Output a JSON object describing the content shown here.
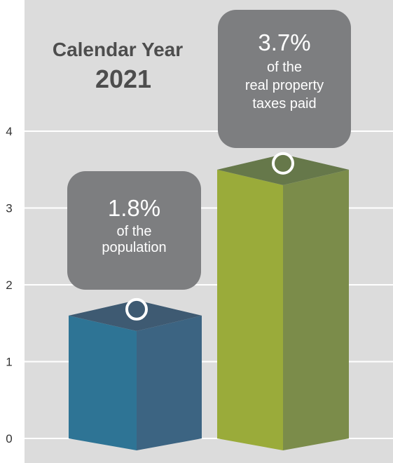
{
  "chart_data": {
    "type": "bar",
    "title_line1": "Calendar Year",
    "title_line2": "2021",
    "categories": [
      "",
      ""
    ],
    "values": [
      1.8,
      3.7
    ],
    "ylim": [
      0,
      4.8
    ],
    "yticks": [
      "0",
      "1",
      "2",
      "3",
      "4"
    ],
    "grid": true,
    "bar_colors": [
      {
        "front": "#2e7495",
        "side": "#3c6482",
        "top": "#3e5a72"
      },
      {
        "front": "#9aab3a",
        "side": "#7b8c4a",
        "top": "#66784a"
      }
    ],
    "callouts": [
      {
        "value": "1.8%",
        "lines": [
          "of the",
          "population"
        ]
      },
      {
        "value": "3.7%",
        "lines": [
          "of the",
          "real property",
          "taxes paid"
        ]
      }
    ],
    "background_color": "#dcdcdc",
    "callout_color": "#7d7e80"
  }
}
